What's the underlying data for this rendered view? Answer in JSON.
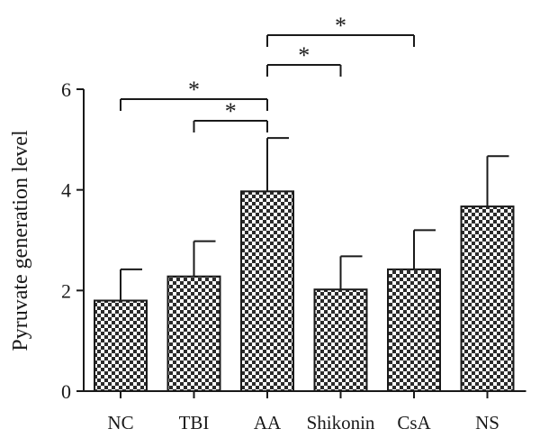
{
  "chart_data": {
    "type": "bar",
    "title": "",
    "xlabel": "",
    "ylabel": "Pyruvate generation level",
    "categories": [
      "NC",
      "TBI",
      "AA",
      "Shikonin",
      "CsA",
      "NS"
    ],
    "values": [
      1.8,
      2.28,
      3.97,
      2.02,
      2.42,
      3.67
    ],
    "error_upper": [
      0.62,
      0.7,
      1.06,
      0.66,
      0.78,
      1.0
    ],
    "ylim": [
      0,
      6
    ],
    "yticks": [
      0,
      2,
      4,
      6
    ],
    "grid": false,
    "legend": "none",
    "bar_fill": "checkerboard",
    "colors": {
      "bar_dark": "#2b2b2b",
      "bar_light": "#ffffff",
      "axis": "#1a1a1a"
    },
    "significance": [
      {
        "from": "NC",
        "to": "AA",
        "label": "*"
      },
      {
        "from": "TBI",
        "to": "AA",
        "label": "*"
      },
      {
        "from": "AA",
        "to": "Shikonin",
        "label": "*"
      },
      {
        "from": "AA",
        "to": "CsA",
        "label": "*"
      }
    ]
  }
}
